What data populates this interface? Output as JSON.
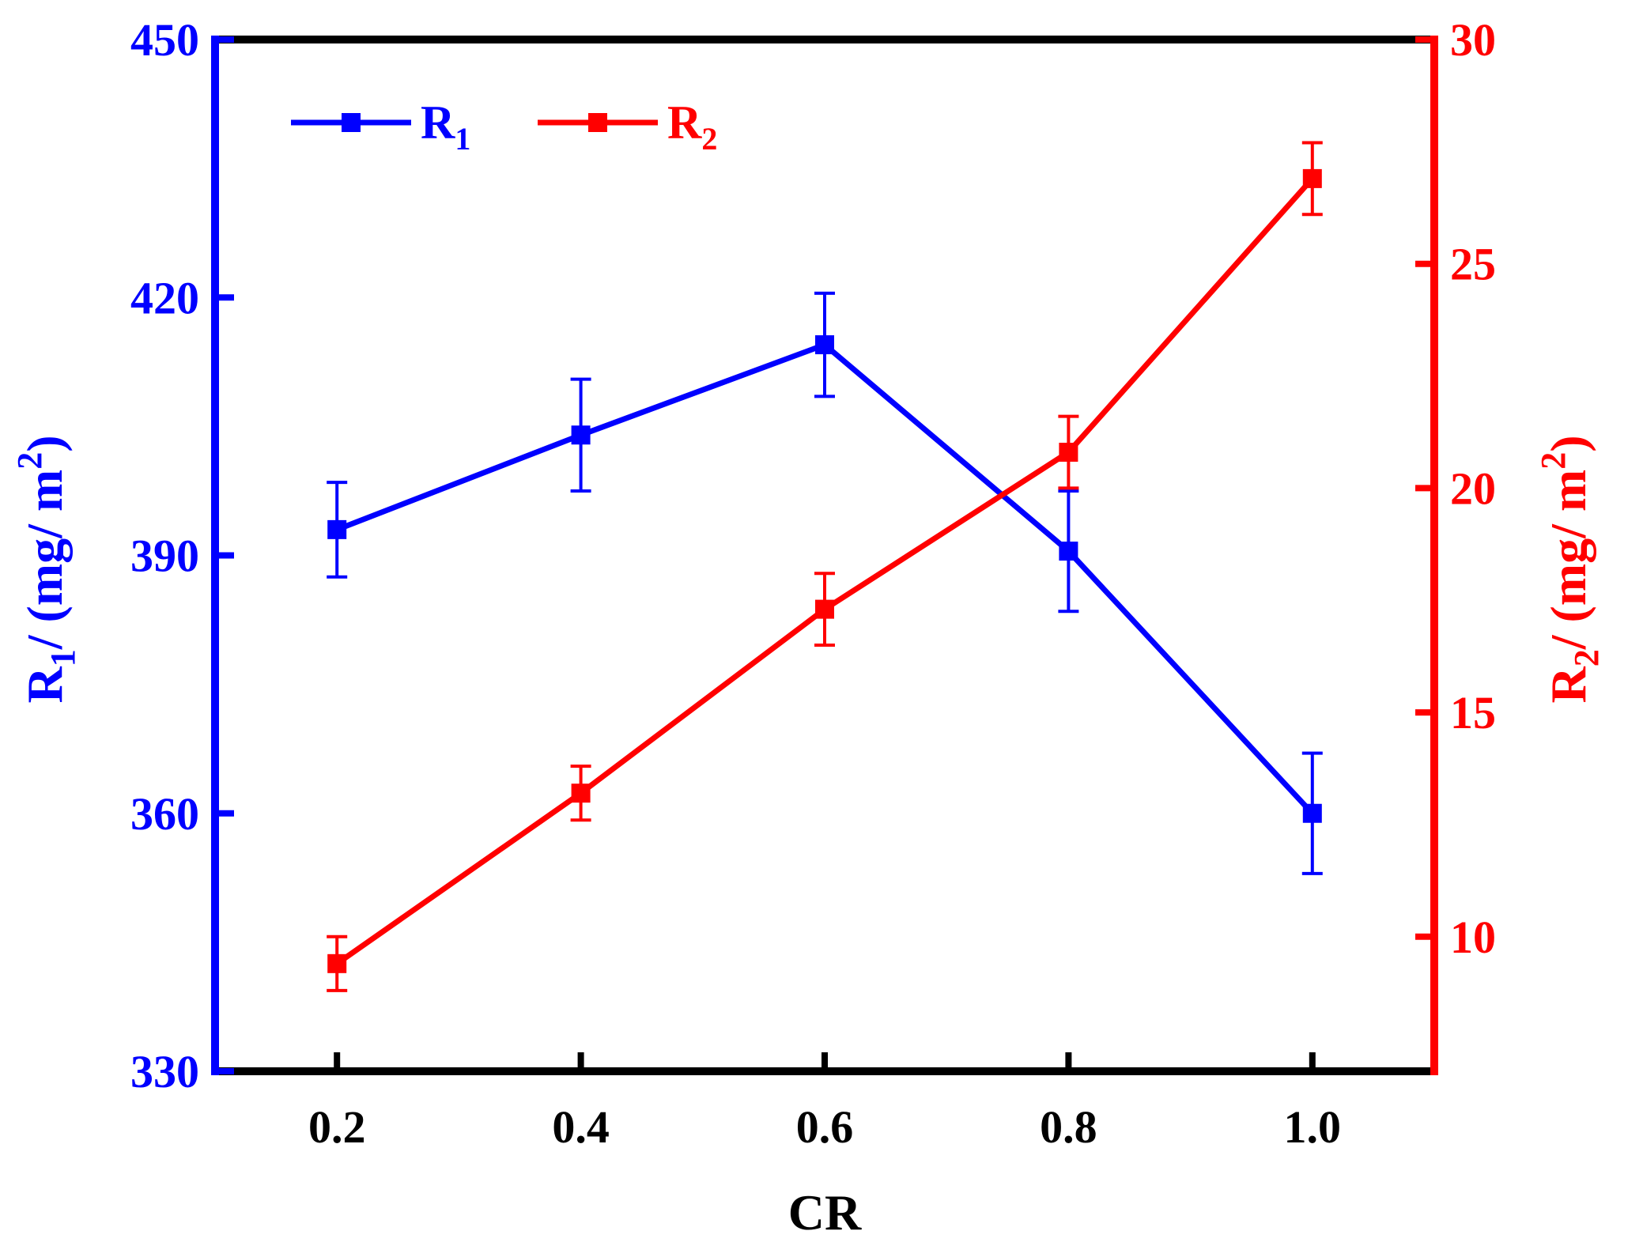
{
  "chart_data": {
    "type": "line",
    "xlabel": "CR",
    "x": [
      0.2,
      0.4,
      0.6,
      0.8,
      1.0
    ],
    "xtick_labels": [
      "0.2",
      "0.4",
      "0.6",
      "0.8",
      "1.0"
    ],
    "xlim": [
      0.1,
      1.1
    ],
    "series": [
      {
        "name": "R1",
        "label_main": "R",
        "label_sub": "1",
        "axis": "left",
        "color": "#0000FF",
        "values": [
          393,
          404,
          414.5,
          390.5,
          360
        ],
        "error": [
          5.5,
          6.5,
          6,
          7,
          7
        ]
      },
      {
        "name": "R2",
        "label_main": "R",
        "label_sub": "2",
        "axis": "right",
        "color": "#FF0000",
        "values": [
          9.4,
          13.2,
          17.3,
          20.8,
          26.9
        ],
        "error": [
          0.6,
          0.6,
          0.8,
          0.8,
          0.8
        ]
      }
    ],
    "y_left": {
      "label_main": "R",
      "label_sub": "1",
      "label_rest": "/ (mg/ m",
      "label_sup": "2",
      "label_end": ")",
      "lim": [
        330,
        450
      ],
      "ticks": [
        330,
        360,
        390,
        420,
        450
      ],
      "color": "#0000FF"
    },
    "y_right": {
      "label_main": "R",
      "label_sub": "2",
      "label_rest": "/ (mg/ m",
      "label_sup": "2",
      "label_end": ")",
      "lim": [
        7,
        30
      ],
      "ticks": [
        10,
        15,
        20,
        25,
        30
      ],
      "color": "#FF0000"
    },
    "legend": "top-left",
    "grid": false
  }
}
